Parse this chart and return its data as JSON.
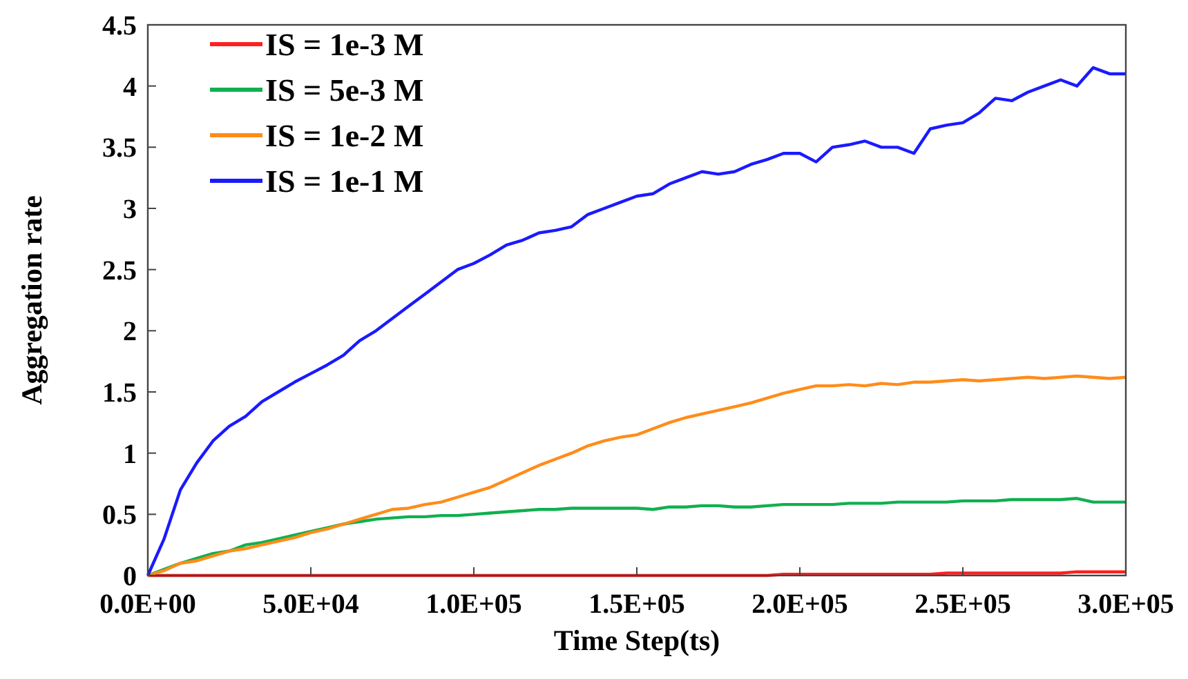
{
  "chart_data": {
    "type": "line",
    "xlabel": "Time Step(ts)",
    "ylabel": "Aggregation rate",
    "xlim": [
      0,
      300000
    ],
    "ylim": [
      0,
      4.5
    ],
    "xticks": [
      {
        "value": 0,
        "label": "0.0E+00"
      },
      {
        "value": 50000,
        "label": "5.0E+04"
      },
      {
        "value": 100000,
        "label": "1.0E+05"
      },
      {
        "value": 150000,
        "label": "1.5E+05"
      },
      {
        "value": 200000,
        "label": "2.0E+05"
      },
      {
        "value": 250000,
        "label": "2.5E+05"
      },
      {
        "value": 300000,
        "label": "3.0E+05"
      }
    ],
    "yticks": [
      0,
      0.5,
      1,
      1.5,
      2,
      2.5,
      3,
      3.5,
      4,
      4.5
    ],
    "grid": false,
    "legend": "top left",
    "marker": "none",
    "line_style": "solid",
    "x": [
      0,
      5000,
      10000,
      15000,
      20000,
      25000,
      30000,
      35000,
      40000,
      45000,
      50000,
      55000,
      60000,
      65000,
      70000,
      75000,
      80000,
      85000,
      90000,
      95000,
      100000,
      105000,
      110000,
      115000,
      120000,
      125000,
      130000,
      135000,
      140000,
      145000,
      150000,
      155000,
      160000,
      165000,
      170000,
      175000,
      180000,
      185000,
      190000,
      195000,
      200000,
      205000,
      210000,
      215000,
      220000,
      225000,
      230000,
      235000,
      240000,
      245000,
      250000,
      255000,
      260000,
      265000,
      270000,
      275000,
      280000,
      285000,
      290000,
      295000,
      300000
    ],
    "series": [
      {
        "name": "IS = 1e-3 M",
        "color": "#ff2020",
        "values": [
          0,
          0,
          0,
          0,
          0,
          0,
          0,
          0,
          0,
          0,
          0,
          0,
          0,
          0,
          0,
          0,
          0,
          0,
          0,
          0,
          0,
          0,
          0,
          0,
          0,
          0,
          0,
          0,
          0,
          0,
          0,
          0,
          0,
          0,
          0,
          0,
          0,
          0,
          0,
          0.01,
          0.01,
          0.01,
          0.01,
          0.01,
          0.01,
          0.01,
          0.01,
          0.01,
          0.01,
          0.02,
          0.02,
          0.02,
          0.02,
          0.02,
          0.02,
          0.02,
          0.02,
          0.03,
          0.03,
          0.03,
          0.03
        ]
      },
      {
        "name": "IS = 5e-3 M",
        "color": "#10b050",
        "values": [
          0,
          0.05,
          0.1,
          0.14,
          0.18,
          0.2,
          0.25,
          0.27,
          0.3,
          0.33,
          0.36,
          0.39,
          0.42,
          0.44,
          0.46,
          0.47,
          0.48,
          0.48,
          0.49,
          0.49,
          0.5,
          0.51,
          0.52,
          0.53,
          0.54,
          0.54,
          0.55,
          0.55,
          0.55,
          0.55,
          0.55,
          0.54,
          0.56,
          0.56,
          0.57,
          0.57,
          0.56,
          0.56,
          0.57,
          0.58,
          0.58,
          0.58,
          0.58,
          0.59,
          0.59,
          0.59,
          0.6,
          0.6,
          0.6,
          0.6,
          0.61,
          0.61,
          0.61,
          0.62,
          0.62,
          0.62,
          0.62,
          0.63,
          0.6,
          0.6,
          0.6
        ]
      },
      {
        "name": "IS = 1e-2 M",
        "color": "#ff8c1a",
        "values": [
          0,
          0.04,
          0.1,
          0.12,
          0.16,
          0.2,
          0.22,
          0.25,
          0.28,
          0.31,
          0.35,
          0.38,
          0.42,
          0.46,
          0.5,
          0.54,
          0.55,
          0.58,
          0.6,
          0.64,
          0.68,
          0.72,
          0.78,
          0.84,
          0.9,
          0.95,
          1.0,
          1.06,
          1.1,
          1.13,
          1.15,
          1.2,
          1.25,
          1.29,
          1.32,
          1.35,
          1.38,
          1.41,
          1.45,
          1.49,
          1.52,
          1.55,
          1.55,
          1.56,
          1.55,
          1.57,
          1.56,
          1.58,
          1.58,
          1.59,
          1.6,
          1.59,
          1.6,
          1.61,
          1.62,
          1.61,
          1.62,
          1.63,
          1.62,
          1.61,
          1.62
        ]
      },
      {
        "name": "IS = 1e-1 M",
        "color": "#1a1aff",
        "values": [
          0,
          0.3,
          0.7,
          0.92,
          1.1,
          1.22,
          1.3,
          1.42,
          1.5,
          1.58,
          1.65,
          1.72,
          1.8,
          1.92,
          2.0,
          2.1,
          2.2,
          2.3,
          2.4,
          2.5,
          2.55,
          2.62,
          2.7,
          2.74,
          2.8,
          2.82,
          2.85,
          2.95,
          3.0,
          3.05,
          3.1,
          3.12,
          3.2,
          3.25,
          3.3,
          3.28,
          3.3,
          3.36,
          3.4,
          3.45,
          3.45,
          3.38,
          3.5,
          3.52,
          3.55,
          3.5,
          3.5,
          3.45,
          3.65,
          3.68,
          3.7,
          3.78,
          3.9,
          3.88,
          3.95,
          4.0,
          4.05,
          4.0,
          4.15,
          4.1,
          4.1
        ]
      }
    ]
  }
}
